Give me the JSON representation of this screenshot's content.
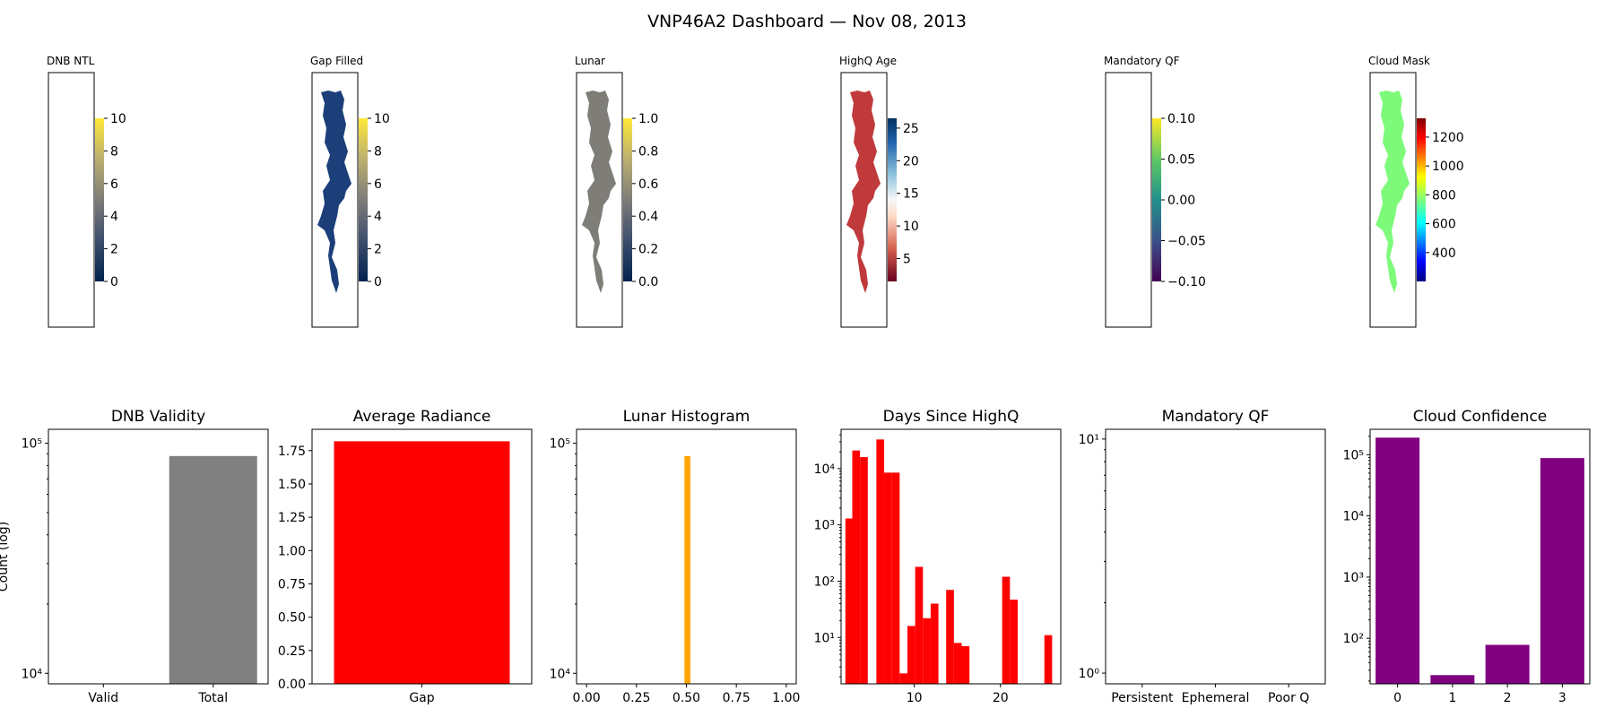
{
  "title": "VNP46A2 Dashboard — Nov 08, 2013",
  "maps": [
    {
      "title": "DNB NTL",
      "colormap": "cividis",
      "cbar_min": 0,
      "cbar_max": 10,
      "ticks": [
        0,
        2,
        4,
        6,
        8,
        10
      ],
      "tick_labels": [
        "0",
        "2",
        "4",
        "6",
        "8",
        "10"
      ],
      "fill": "empty",
      "fill_color": ""
    },
    {
      "title": "Gap Filled",
      "colormap": "cividis",
      "cbar_min": 0,
      "cbar_max": 10,
      "ticks": [
        0,
        2,
        4,
        6,
        8,
        10
      ],
      "tick_labels": [
        "0",
        "2",
        "4",
        "6",
        "8",
        "10"
      ],
      "fill": "shape",
      "fill_color": "#1c3f7a"
    },
    {
      "title": "Lunar",
      "colormap": "cividis",
      "cbar_min": 0,
      "cbar_max": 1,
      "ticks": [
        0,
        0.2,
        0.4,
        0.6,
        0.8,
        1.0
      ],
      "tick_labels": [
        "0.0",
        "0.2",
        "0.4",
        "0.6",
        "0.8",
        "1.0"
      ],
      "fill": "shape",
      "fill_color": "#7f7d78"
    },
    {
      "title": "HighQ Age",
      "colormap": "RdBu",
      "cbar_min": 1.5,
      "cbar_max": 26.5,
      "ticks": [
        5,
        10,
        15,
        20,
        25
      ],
      "tick_labels": [
        "5",
        "10",
        "15",
        "20",
        "25"
      ],
      "fill": "shape",
      "fill_color": "#c0393b"
    },
    {
      "title": "Mandatory QF",
      "colormap": "viridis",
      "cbar_min": -0.1,
      "cbar_max": 0.1,
      "ticks": [
        -0.1,
        -0.05,
        0,
        0.05,
        0.1
      ],
      "tick_labels": [
        "−0.10",
        "−0.05",
        "0.00",
        "0.05",
        "0.10"
      ],
      "fill": "empty",
      "fill_color": ""
    },
    {
      "title": "Cloud Mask",
      "colormap": "jet",
      "cbar_min": 200,
      "cbar_max": 1330,
      "ticks": [
        400,
        600,
        800,
        1000,
        1200
      ],
      "tick_labels": [
        "400",
        "600",
        "800",
        "1000",
        "1200"
      ],
      "fill": "shape",
      "fill_color": "#7dfa7a"
    }
  ],
  "chart_data": [
    {
      "type": "bar",
      "title": "DNB Validity",
      "ylabel": "Count (log)",
      "yscale": "log",
      "ylim": [
        9000,
        115000
      ],
      "categories": [
        "Valid",
        "Total"
      ],
      "values": [
        0,
        88000
      ],
      "color": "#808080",
      "ytick_values": [
        10000,
        100000
      ],
      "ytick_labels": [
        "10⁴",
        "10⁵"
      ]
    },
    {
      "type": "bar",
      "title": "Average Radiance",
      "yscale": "linear",
      "ylim": [
        0,
        1.91
      ],
      "categories": [
        "Gap"
      ],
      "values": [
        1.82
      ],
      "color": "#ff0000",
      "ytick_values": [
        0,
        0.25,
        0.5,
        0.75,
        1.0,
        1.25,
        1.5,
        1.75
      ],
      "ytick_labels": [
        "0.00",
        "0.25",
        "0.50",
        "0.75",
        "1.00",
        "1.25",
        "1.50",
        "1.75"
      ]
    },
    {
      "type": "bar",
      "title": "Lunar Histogram",
      "yscale": "log",
      "ylim": [
        9000,
        115000
      ],
      "xlim": [
        -0.05,
        1.05
      ],
      "bins": [
        {
          "x0": 0.49,
          "x1": 0.52,
          "count": 88000
        }
      ],
      "color": "#ffa500",
      "xtick_values": [
        0,
        0.25,
        0.5,
        0.75,
        1.0
      ],
      "xtick_labels": [
        "0.00",
        "0.25",
        "0.50",
        "0.75",
        "1.00"
      ],
      "ytick_values": [
        10000,
        100000
      ],
      "ytick_labels": [
        "10⁴",
        "10⁵"
      ]
    },
    {
      "type": "bar",
      "title": "Days Since HighQ",
      "yscale": "log",
      "ylim": [
        1.5,
        50000
      ],
      "xlim": [
        1.5,
        27
      ],
      "bins": [
        {
          "x0": 2.0,
          "x1": 2.8,
          "count": 1300
        },
        {
          "x0": 2.8,
          "x1": 3.7,
          "count": 21000
        },
        {
          "x0": 3.7,
          "x1": 4.6,
          "count": 16000
        },
        {
          "x0": 5.6,
          "x1": 6.5,
          "count": 33000
        },
        {
          "x0": 6.5,
          "x1": 7.4,
          "count": 8500
        },
        {
          "x0": 7.4,
          "x1": 8.3,
          "count": 8500
        },
        {
          "x0": 8.3,
          "x1": 9.2,
          "count": 2.3
        },
        {
          "x0": 9.2,
          "x1": 10.1,
          "count": 16
        },
        {
          "x0": 10.1,
          "x1": 11.0,
          "count": 180
        },
        {
          "x0": 11.0,
          "x1": 11.9,
          "count": 22
        },
        {
          "x0": 11.9,
          "x1": 12.8,
          "count": 40
        },
        {
          "x0": 13.7,
          "x1": 14.6,
          "count": 70
        },
        {
          "x0": 14.6,
          "x1": 15.5,
          "count": 8
        },
        {
          "x0": 15.5,
          "x1": 16.4,
          "count": 7
        },
        {
          "x0": 20.2,
          "x1": 21.1,
          "count": 120
        },
        {
          "x0": 21.1,
          "x1": 22.0,
          "count": 47
        },
        {
          "x0": 25.1,
          "x1": 26.0,
          "count": 11
        }
      ],
      "color": "#ff0000",
      "xtick_values": [
        10,
        20
      ],
      "xtick_labels": [
        "10",
        "20"
      ],
      "ytick_values": [
        10,
        100,
        1000,
        10000
      ],
      "ytick_labels": [
        "10¹",
        "10²",
        "10³",
        "10⁴"
      ]
    },
    {
      "type": "bar",
      "title": "Mandatory QF",
      "yscale": "log",
      "ylim": [
        0.9,
        11
      ],
      "categories": [
        "Persistent",
        "Ephemeral",
        "Poor Q"
      ],
      "values": [
        0,
        0,
        0
      ],
      "color": "#1f77b4",
      "ytick_values": [
        1,
        10
      ],
      "ytick_labels": [
        "10⁰",
        "10¹"
      ]
    },
    {
      "type": "bar",
      "title": "Cloud Confidence",
      "yscale": "log",
      "ylim": [
        18,
        260000
      ],
      "categories": [
        "0",
        "1",
        "2",
        "3"
      ],
      "values": [
        190000,
        25,
        78,
        88000
      ],
      "color": "#800080",
      "ytick_values": [
        100,
        1000,
        10000,
        100000
      ],
      "ytick_labels": [
        "10²",
        "10³",
        "10⁴",
        "10⁵"
      ]
    }
  ]
}
